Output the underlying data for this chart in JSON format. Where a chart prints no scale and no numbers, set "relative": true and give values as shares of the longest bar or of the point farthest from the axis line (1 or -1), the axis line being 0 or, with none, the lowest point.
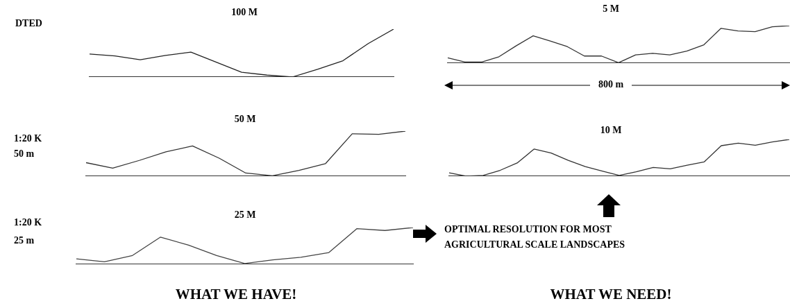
{
  "chart_data": [
    {
      "type": "line",
      "title": "100 M",
      "relative": true,
      "annotations": [
        "DTED"
      ],
      "categories": [
        null,
        null,
        null,
        null,
        null,
        null,
        null,
        null,
        null,
        null,
        null,
        null,
        null
      ],
      "series": [
        {
          "color": "#222222",
          "values": [
            0.48,
            0.44,
            0.36,
            0.45,
            0.52,
            0.31,
            0.1,
            0.04,
            0,
            0.16,
            0.34,
            0.7,
            1
          ]
        }
      ]
    },
    {
      "type": "line",
      "title": "50 M",
      "relative": true,
      "annotations": [
        "1:20 K",
        "50 m"
      ],
      "categories": [
        null,
        null,
        null,
        null,
        null,
        null,
        null,
        null,
        null,
        null,
        null,
        null,
        null
      ],
      "series": [
        {
          "color": "#333333",
          "values": [
            0.3,
            0.18,
            0.35,
            0.54,
            0.67,
            0.4,
            0.07,
            0.01,
            0.13,
            0.28,
            0.94,
            0.93,
            1
          ]
        }
      ]
    },
    {
      "type": "line",
      "title": "25 M",
      "relative": true,
      "annotations": [
        "1:20 K",
        "25 m"
      ],
      "categories": [
        null,
        null,
        null,
        null,
        null,
        null,
        null,
        null,
        null,
        null,
        null,
        null,
        null
      ],
      "series": [
        {
          "color": "#444444",
          "values": [
            0.15,
            0.07,
            0.24,
            0.74,
            0.52,
            0.24,
            0.02,
            0.12,
            0.19,
            0.32,
            0.97,
            0.92,
            1
          ]
        }
      ]
    },
    {
      "type": "line",
      "title": "5 M",
      "relative": true,
      "annotations": [
        "800 m"
      ],
      "categories": [
        null,
        null,
        null,
        null,
        null,
        null,
        null,
        null,
        null,
        null,
        null,
        null,
        null,
        null,
        null,
        null,
        null,
        null,
        null,
        null,
        null
      ],
      "series": [
        {
          "color": "#333333",
          "values": [
            0.14,
            0.03,
            0.03,
            0.17,
            0.46,
            0.73,
            0.59,
            0.44,
            0.19,
            0.19,
            0.01,
            0.22,
            0.26,
            0.22,
            0.32,
            0.49,
            0.93,
            0.86,
            0.84,
            0.97,
            1
          ]
        }
      ]
    },
    {
      "type": "line",
      "title": "10 M",
      "relative": true,
      "categories": [
        null,
        null,
        null,
        null,
        null,
        null,
        null,
        null,
        null,
        null,
        null,
        null,
        null,
        null,
        null,
        null,
        null,
        null,
        null,
        null,
        null
      ],
      "series": [
        {
          "color": "#333333",
          "values": [
            0.09,
            0,
            0.02,
            0.16,
            0.36,
            0.74,
            0.63,
            0.43,
            0.26,
            0.14,
            0.02,
            0.12,
            0.24,
            0.2,
            0.3,
            0.39,
            0.83,
            0.9,
            0.84,
            0.93,
            1
          ]
        }
      ]
    },
    {
      "type": "other",
      "annotations": [
        "OPTIMAL RESOLUTION FOR MOST AGRICULTURAL SCALE LANDSCAPES",
        "WHAT WE HAVE!",
        "WHAT WE NEED!"
      ]
    }
  ]
}
